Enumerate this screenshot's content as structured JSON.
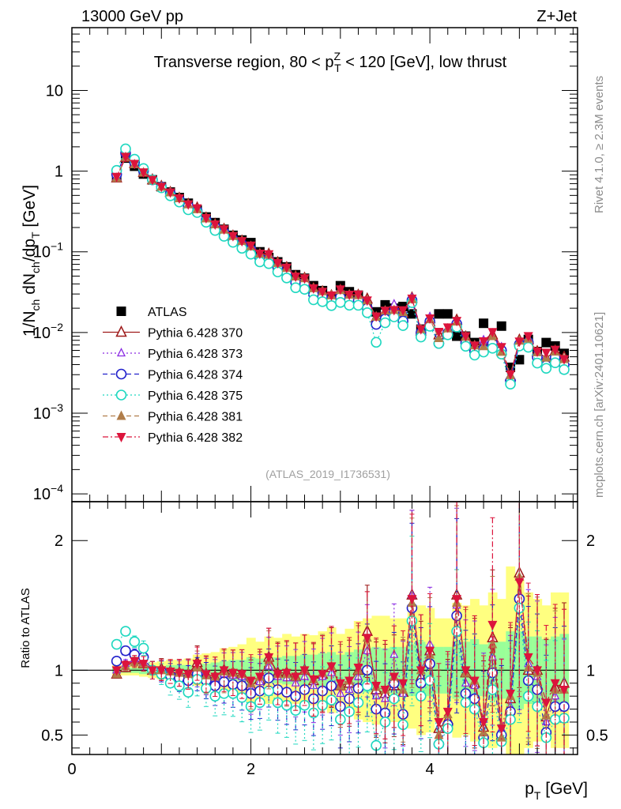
{
  "header": {
    "left": "13000 GeV pp",
    "right": "Z+Jet"
  },
  "side_labels": {
    "rivet": "Rivet 4.1.0, ≥ 2.3M events",
    "mcplots": "mcplots.cern.ch [arXiv:2401.10621]"
  },
  "chart_data": [
    {
      "id": "main",
      "type": "scatter",
      "title": {
        "prefix": "Transverse region, 80 < p",
        "sup": "Z",
        "sub": "T",
        "suffix": " < 120 [GeV], low thrust"
      },
      "ylabel": {
        "a": "1/N",
        "a_sub": "ch",
        "b": " dN",
        "b_sub": "ch",
        "c": "/dp",
        "c_sub": "T",
        "d": " [GeV]"
      },
      "yscale": "log",
      "ylim": [
        8e-05,
        60
      ],
      "xlim": [
        0,
        5.65
      ],
      "ytick_labels": [
        {
          "value": 10,
          "mantissa": "10",
          "exp": ""
        },
        {
          "value": 1,
          "mantissa": "1",
          "exp": ""
        },
        {
          "value": 0.1,
          "mantissa": "10",
          "exp": "−1"
        },
        {
          "value": 0.01,
          "mantissa": "10",
          "exp": "−2"
        },
        {
          "value": 0.001,
          "mantissa": "10",
          "exp": "−3"
        },
        {
          "value": 0.0001,
          "mantissa": "10",
          "exp": "−4"
        }
      ],
      "watermark": "(ATLAS_2019_I1736531)",
      "x": [
        0.5,
        0.6,
        0.7,
        0.8,
        0.9,
        1.0,
        1.1,
        1.2,
        1.3,
        1.4,
        1.5,
        1.6,
        1.7,
        1.8,
        1.9,
        2.0,
        2.1,
        2.2,
        2.3,
        2.4,
        2.5,
        2.6,
        2.7,
        2.8,
        2.9,
        3.0,
        3.1,
        3.2,
        3.3,
        3.4,
        3.5,
        3.6,
        3.7,
        3.8,
        3.9,
        4.0,
        4.1,
        4.2,
        4.3,
        4.4,
        4.5,
        4.6,
        4.7,
        4.8,
        4.9,
        5.0,
        5.1,
        5.2,
        5.3,
        5.4,
        5.5
      ],
      "data": [
        0.85,
        1.45,
        1.15,
        0.92,
        0.78,
        0.64,
        0.55,
        0.47,
        0.4,
        0.33,
        0.27,
        0.23,
        0.19,
        0.16,
        0.14,
        0.13,
        0.1,
        0.085,
        0.075,
        0.065,
        0.052,
        0.047,
        0.038,
        0.033,
        0.028,
        0.038,
        0.032,
        0.029,
        0.02,
        0.018,
        0.022,
        0.02,
        0.021,
        0.017,
        0.011,
        0.013,
        0.017,
        0.017,
        0.009,
        0.009,
        0.0075,
        0.013,
        0.0075,
        0.012,
        0.0037,
        0.0046,
        0.0082,
        0.0058,
        0.0075,
        0.0068,
        0.0055
      ],
      "legend": {
        "data_label": "ATLAS",
        "entries": [
          {
            "label": "Pythia 6.428 370",
            "color": "#9e1a1a",
            "marker": "tri-up-open",
            "dash": "solid"
          },
          {
            "label": "Pythia 6.428 373",
            "color": "#8a2be2",
            "marker": "tri-up-open-small",
            "dash": "dot"
          },
          {
            "label": "Pythia 6.428 374",
            "color": "#2222cc",
            "marker": "circle-open",
            "dash": "dash"
          },
          {
            "label": "Pythia 6.428 375",
            "color": "#1fd8c0",
            "marker": "circle-open",
            "dash": "dot"
          },
          {
            "label": "Pythia 6.428 381",
            "color": "#b07d4a",
            "marker": "tri-up-filled",
            "dash": "dash"
          },
          {
            "label": "Pythia 6.428 382",
            "color": "#dc143c",
            "marker": "tri-down-filled",
            "dash": "dashdot"
          }
        ]
      }
    },
    {
      "id": "ratio",
      "type": "scatter",
      "ylabel": "Ratio to ATLAS",
      "ylim": [
        0.35,
        2.3
      ],
      "xlim": [
        0,
        5.65
      ],
      "xlabel": {
        "a": "p",
        "a_sub": "T",
        "b": " [GeV]"
      },
      "ytick_labels": [
        {
          "value": 0.5,
          "label": "0.5"
        },
        {
          "value": 1,
          "label": "1"
        },
        {
          "value": 2,
          "label": "2"
        }
      ],
      "xtick_labels": [
        {
          "value": 0,
          "label": "0"
        },
        {
          "value": 2,
          "label": "2"
        },
        {
          "value": 4,
          "label": "4"
        }
      ],
      "bands": {
        "inner_color": "#99ff99",
        "outer_color": "#ffff80",
        "inner_halfwidth": [
          0.02,
          0.02,
          0.02,
          0.03,
          0.03,
          0.03,
          0.04,
          0.04,
          0.04,
          0.05,
          0.05,
          0.06,
          0.07,
          0.08,
          0.08,
          0.1,
          0.09,
          0.1,
          0.1,
          0.11,
          0.11,
          0.12,
          0.12,
          0.13,
          0.14,
          0.12,
          0.14,
          0.16,
          0.17,
          0.18,
          0.17,
          0.18,
          0.18,
          0.2,
          0.22,
          0.2,
          0.18,
          0.18,
          0.22,
          0.22,
          0.24,
          0.2,
          0.23,
          0.22,
          0.3,
          0.3,
          0.26,
          0.26,
          0.24,
          0.26,
          0.28
        ],
        "outer_halfwidth": [
          0.04,
          0.04,
          0.04,
          0.05,
          0.06,
          0.07,
          0.08,
          0.08,
          0.09,
          0.12,
          0.13,
          0.14,
          0.17,
          0.18,
          0.2,
          0.25,
          0.22,
          0.26,
          0.25,
          0.28,
          0.26,
          0.28,
          0.27,
          0.3,
          0.33,
          0.28,
          0.32,
          0.38,
          0.4,
          0.42,
          0.42,
          0.4,
          0.4,
          0.45,
          0.5,
          0.48,
          0.4,
          0.4,
          0.52,
          0.5,
          0.55,
          0.5,
          0.6,
          0.55,
          0.8,
          0.7,
          0.6,
          0.55,
          0.5,
          0.6,
          0.6
        ]
      },
      "series": [
        {
          "name": "Pythia 6.428 370",
          "values": [
            0.97,
            1.02,
            1.08,
            1.05,
            1.0,
            1.01,
            0.99,
            0.98,
            0.97,
            1.06,
            0.97,
            0.95,
            1.0,
            0.98,
            0.97,
            0.88,
            0.93,
            1.1,
            0.98,
            0.98,
            0.95,
            1.0,
            0.92,
            0.97,
            1.02,
            0.88,
            0.9,
            1.0,
            1.3,
            0.85,
            0.82,
            0.88,
            0.83,
            1.58,
            0.95,
            1.15,
            0.55,
            0.62,
            1.58,
            0.98,
            0.9,
            0.56,
            1.25,
            0.5,
            0.78,
            1.75,
            1.0,
            1.0,
            0.64,
            0.87,
            0.9
          ]
        },
        {
          "name": "Pythia 6.428 373",
          "values": [
            1.0,
            1.05,
            1.08,
            1.06,
            1.0,
            1.0,
            0.98,
            0.97,
            0.96,
            1.0,
            0.95,
            0.93,
            0.97,
            0.96,
            0.95,
            0.86,
            0.91,
            1.03,
            0.95,
            0.94,
            0.9,
            0.95,
            0.88,
            0.95,
            0.98,
            0.82,
            0.85,
            0.95,
            1.15,
            0.8,
            0.78,
            1.12,
            0.82,
            1.58,
            1.0,
            1.2,
            0.5,
            0.6,
            1.5,
            0.9,
            0.88,
            0.62,
            1.1,
            0.55,
            0.72,
            1.58,
            1.05,
            0.95,
            0.6,
            0.8,
            0.62
          ]
        },
        {
          "name": "Pythia 6.428 374",
          "values": [
            1.07,
            1.15,
            1.12,
            1.1,
            1.0,
            0.99,
            0.96,
            0.94,
            0.92,
            0.97,
            0.92,
            0.88,
            0.91,
            0.89,
            0.88,
            0.82,
            0.84,
            0.94,
            0.85,
            0.83,
            0.8,
            0.85,
            0.78,
            0.84,
            0.88,
            0.72,
            0.78,
            0.86,
            1.0,
            0.7,
            0.67,
            0.9,
            0.66,
            1.48,
            0.9,
            1.05,
            0.43,
            0.58,
            1.42,
            0.82,
            0.78,
            0.48,
            0.98,
            0.5,
            0.68,
            1.55,
            0.92,
            0.85,
            0.52,
            0.72,
            0.72
          ]
        },
        {
          "name": "Pythia 6.428 375",
          "values": [
            1.2,
            1.3,
            1.22,
            1.17,
            1.0,
            0.97,
            0.9,
            0.88,
            0.83,
            0.93,
            0.86,
            0.8,
            0.82,
            0.82,
            0.79,
            0.72,
            0.75,
            0.84,
            0.75,
            0.73,
            0.69,
            0.73,
            0.67,
            0.73,
            0.77,
            0.62,
            0.68,
            0.75,
            0.88,
            0.42,
            0.6,
            0.78,
            0.58,
            1.38,
            0.8,
            0.92,
            0.43,
            0.55,
            1.3,
            0.75,
            0.7,
            0.44,
            0.85,
            0.45,
            0.62,
            1.48,
            0.8,
            0.72,
            0.48,
            0.62,
            0.63
          ]
        },
        {
          "name": "Pythia 6.428 381",
          "values": [
            0.97,
            1.03,
            1.06,
            1.05,
            1.0,
            1.0,
            0.99,
            0.98,
            0.97,
            1.02,
            0.96,
            0.95,
            0.99,
            0.98,
            0.97,
            0.9,
            0.95,
            1.08,
            0.97,
            0.97,
            0.95,
            1.0,
            0.93,
            0.98,
            1.03,
            0.88,
            0.92,
            1.0,
            1.25,
            0.87,
            0.85,
            0.95,
            0.85,
            1.52,
            1.0,
            1.12,
            0.5,
            0.66,
            1.52,
            0.98,
            0.92,
            0.52,
            1.2,
            0.48,
            0.8,
            1.72,
            1.02,
            0.98,
            0.65,
            0.85,
            0.85
          ]
        },
        {
          "name": "Pythia 6.428 382",
          "values": [
            1.0,
            1.04,
            1.07,
            1.05,
            1.0,
            1.0,
            0.99,
            0.98,
            0.97,
            1.05,
            0.97,
            0.95,
            1.0,
            0.98,
            0.97,
            0.92,
            0.95,
            1.1,
            0.97,
            0.98,
            0.95,
            1.0,
            0.93,
            0.97,
            1.03,
            0.9,
            0.92,
            1.02,
            1.25,
            0.88,
            0.85,
            0.95,
            0.9,
            1.55,
            1.0,
            1.15,
            0.6,
            0.68,
            1.55,
            1.0,
            0.92,
            0.6,
            1.35,
            0.55,
            0.82,
            1.68,
            1.1,
            1.0,
            0.75,
            0.9,
            0.85
          ]
        }
      ]
    }
  ]
}
